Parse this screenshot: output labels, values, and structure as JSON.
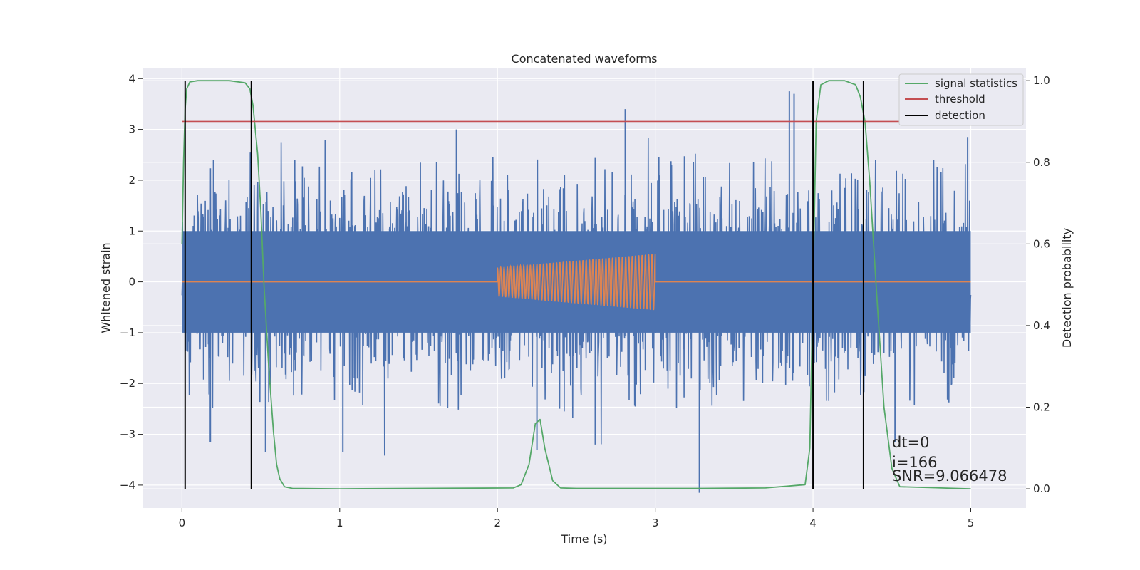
{
  "chart_data": {
    "type": "line",
    "title": "Concatenated waveforms",
    "xlabel": "Time (s)",
    "ylabel": "Whitened strain",
    "ylabel_right": "Detection probability",
    "xlim": [
      -0.25,
      5.35
    ],
    "ylim": [
      -4.45,
      4.2
    ],
    "ylim_right": [
      -0.047,
      1.03
    ],
    "x_ticks": [
      0,
      1,
      2,
      3,
      4,
      5
    ],
    "y_ticks": [
      4,
      3,
      2,
      1,
      0,
      -1,
      -2,
      -3,
      -4
    ],
    "y_tick_labels": [
      "4",
      "3",
      "2",
      "1",
      "0",
      "−1",
      "−2",
      "−3",
      "−4"
    ],
    "y_right_ticks": [
      1.0,
      0.8,
      0.6,
      0.4,
      0.2,
      0.0
    ],
    "y_right_tick_labels": [
      "1.0",
      "0.8",
      "0.6",
      "0.4",
      "0.2",
      "0.0"
    ],
    "grid": true,
    "legend_position": "top-right",
    "series": [
      {
        "name": "",
        "kind": "noise",
        "color": "#4c72b0",
        "axis": "left",
        "x_range": [
          0,
          5
        ],
        "core_amplitude": 1.0,
        "spike_max": 3.75,
        "spike_min": -4.15
      },
      {
        "name": "",
        "kind": "chirp",
        "color": "#dd8452",
        "axis": "left",
        "baseline": 0,
        "x_range": [
          0,
          5
        ],
        "chirp_range": [
          2.0,
          3.0
        ],
        "amplitude_start": 0.28,
        "amplitude_end": 0.55,
        "cycles": 48
      },
      {
        "name": "signal statistics",
        "kind": "probability",
        "color": "#55a868",
        "axis": "right",
        "x": [
          0,
          0.01,
          0.02,
          0.03,
          0.05,
          0.1,
          0.2,
          0.3,
          0.4,
          0.43,
          0.45,
          0.48,
          0.5,
          0.52,
          0.55,
          0.58,
          0.6,
          0.62,
          0.65,
          0.7,
          1.0,
          2.1,
          2.15,
          2.2,
          2.24,
          2.27,
          2.3,
          2.35,
          2.4,
          2.5,
          3.0,
          3.3,
          3.7,
          3.95,
          3.98,
          4.0,
          4.02,
          4.05,
          4.1,
          4.2,
          4.27,
          4.3,
          4.33,
          4.36,
          4.4,
          4.45,
          4.5,
          4.55,
          5.0
        ],
        "y": [
          0.6,
          0.8,
          0.93,
          0.98,
          0.997,
          1.0,
          1.0,
          1.0,
          0.995,
          0.98,
          0.94,
          0.82,
          0.68,
          0.5,
          0.3,
          0.14,
          0.06,
          0.025,
          0.005,
          0.001,
          0.0,
          0.002,
          0.01,
          0.06,
          0.16,
          0.17,
          0.1,
          0.02,
          0.002,
          0.001,
          0.001,
          0.001,
          0.002,
          0.01,
          0.1,
          0.5,
          0.9,
          0.99,
          1.0,
          1.0,
          0.99,
          0.96,
          0.9,
          0.75,
          0.5,
          0.2,
          0.05,
          0.005,
          0.0
        ]
      },
      {
        "name": "threshold",
        "kind": "hline",
        "color": "#c44e52",
        "axis": "right",
        "value": 0.9,
        "x_range": [
          0,
          5.1
        ]
      },
      {
        "name": "detection",
        "kind": "vlines",
        "color": "#000000",
        "axis": "right",
        "x": [
          0.02,
          0.44,
          4.0,
          4.32
        ],
        "y_range": [
          0.0,
          1.0
        ]
      }
    ],
    "annotations": [
      {
        "text": "dt=0",
        "x": 4.5,
        "y": -3.3
      },
      {
        "text": "i=166",
        "x": 4.5,
        "y": -3.7
      },
      {
        "text": "SNR=9.066478",
        "x": 4.5,
        "y": -4.05
      }
    ]
  }
}
